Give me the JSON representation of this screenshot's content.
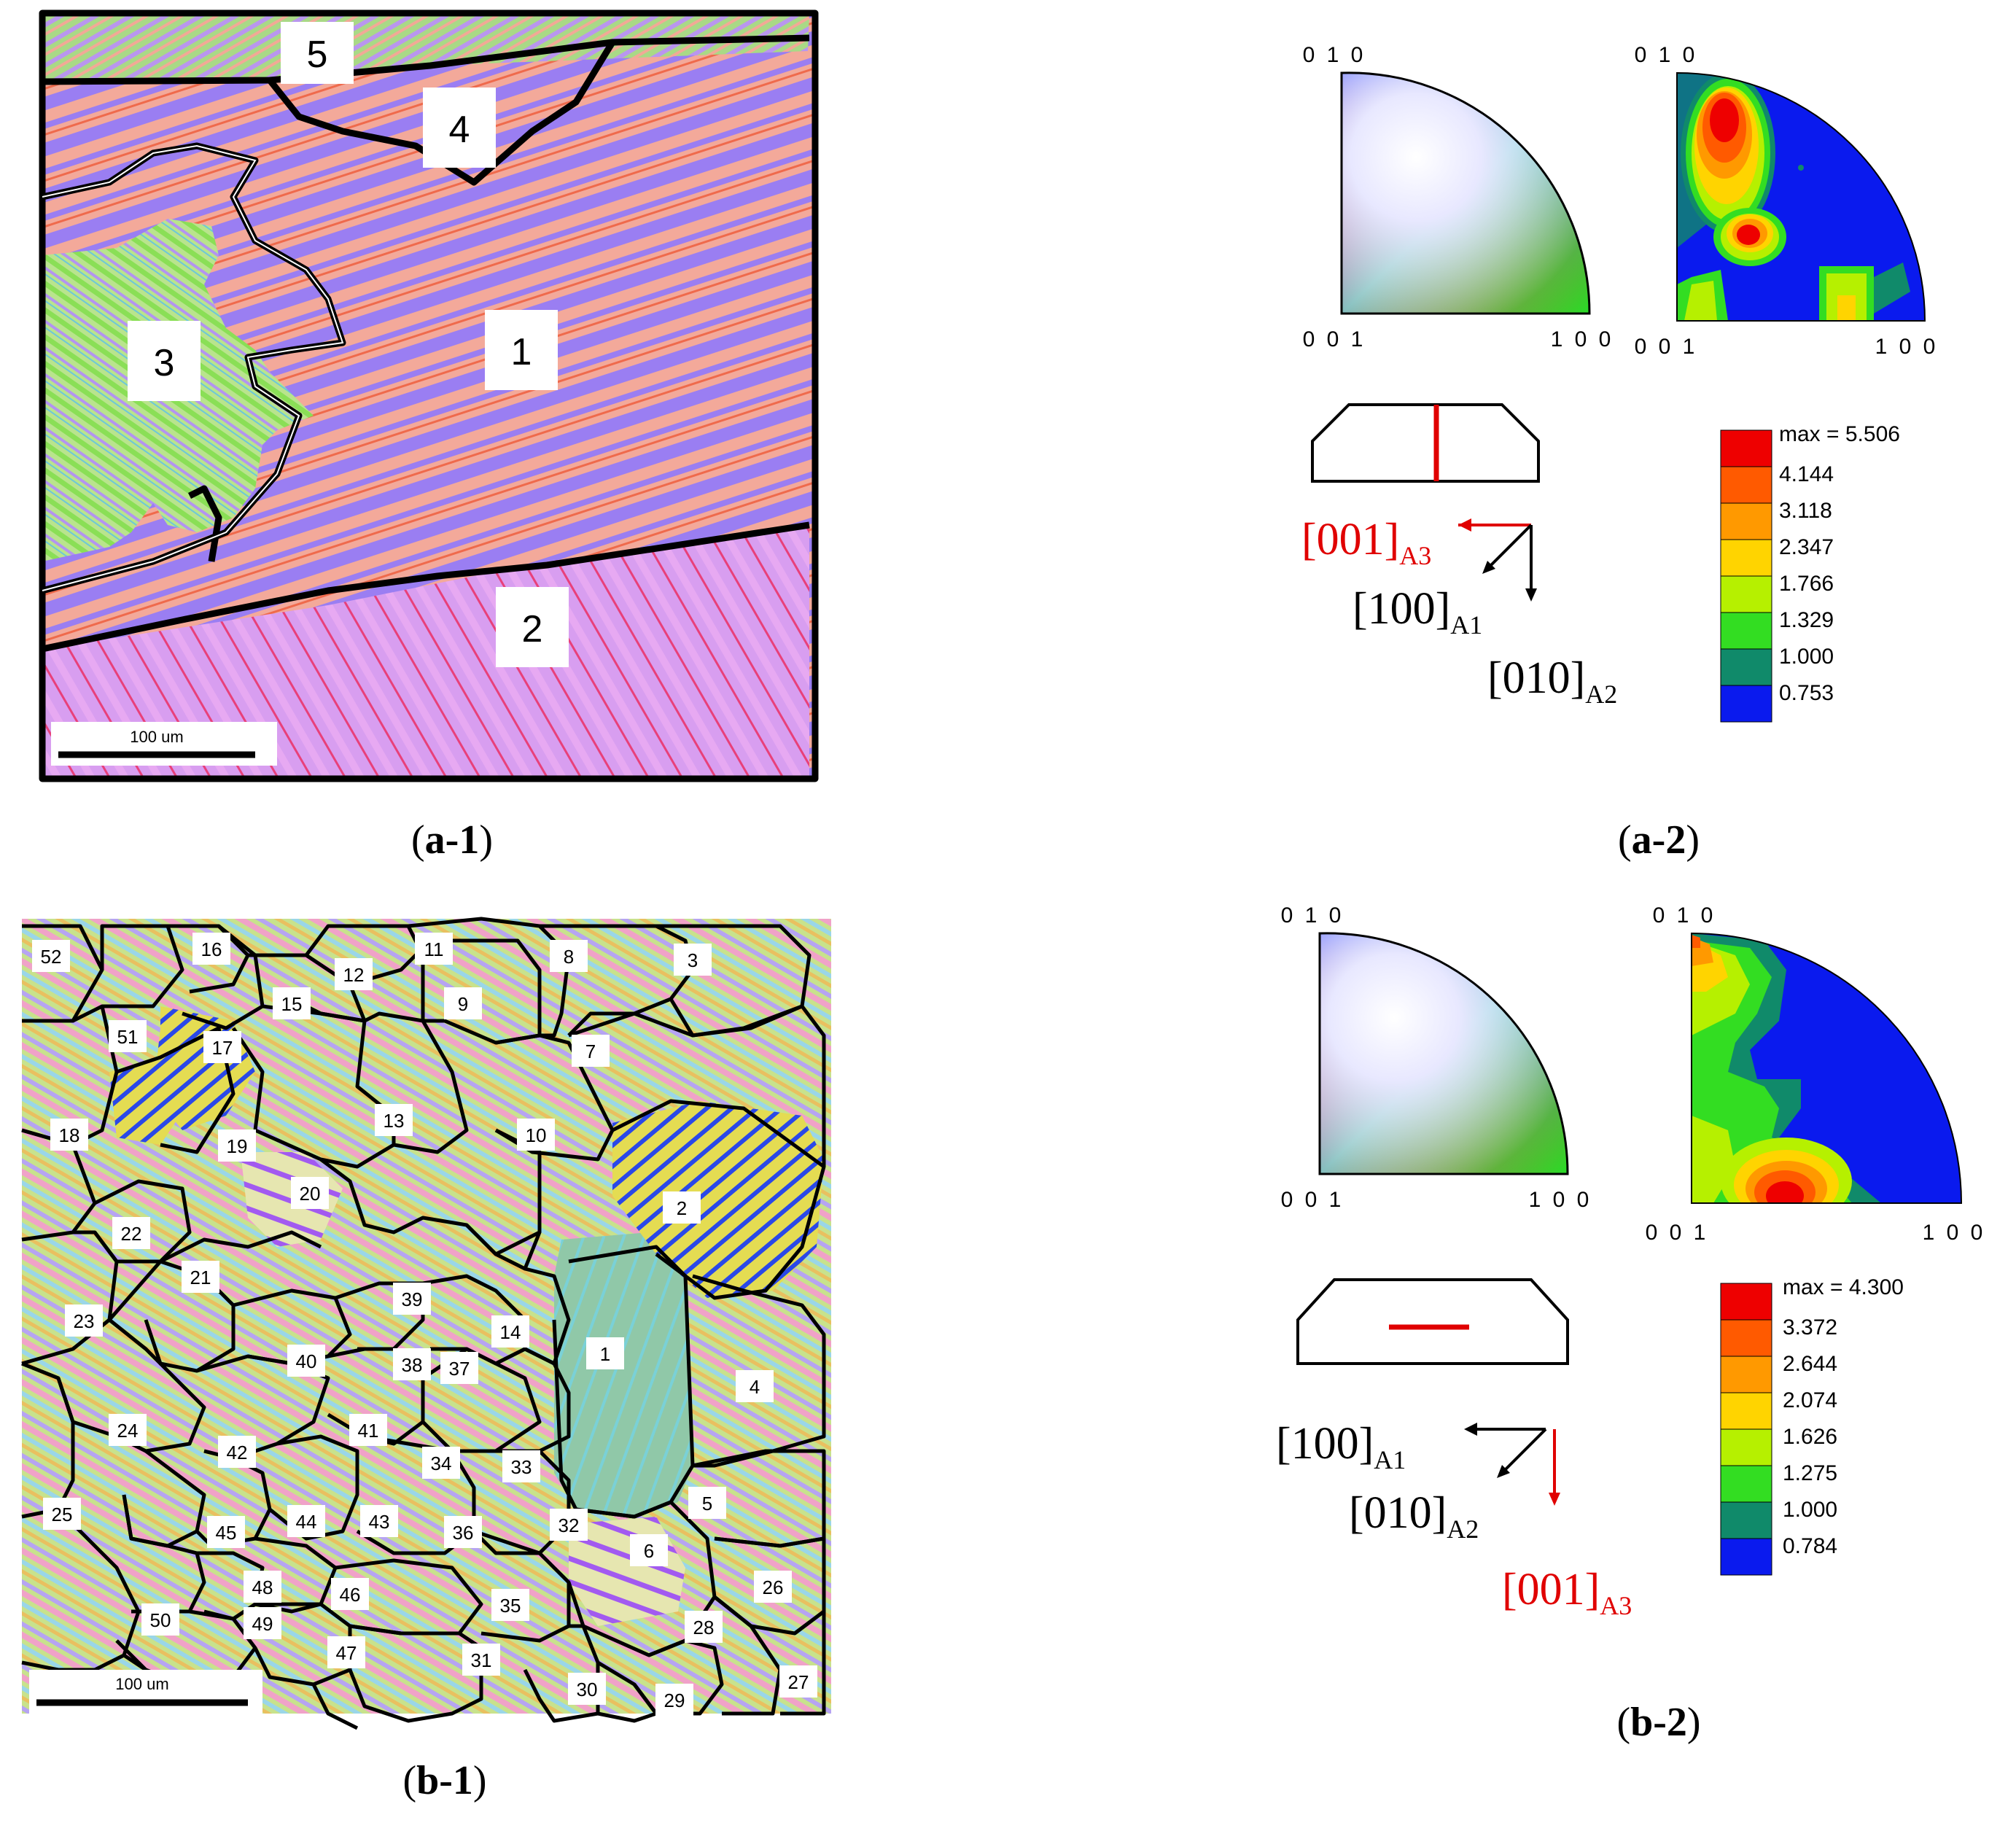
{
  "figure": {
    "panels": {
      "a1": {
        "caption_open": "(",
        "caption_label": "a-1",
        "caption_close": ")",
        "grain_labels": [
          "1",
          "2",
          "3",
          "4",
          "5"
        ],
        "scale_bar": "100 um"
      },
      "a2": {
        "caption_open": "(",
        "caption_label": "a-2",
        "caption_close": ")",
        "ipf_key": {
          "top": "0 1 0",
          "bottom_left": "0 0 1",
          "bottom_right": "1 0 0"
        },
        "pole_figure": {
          "top": "0 1 0",
          "bottom_left": "0 0 1",
          "bottom_right": "1 0 0"
        },
        "axes": {
          "red": {
            "text": "[001]",
            "sub": "A3"
          },
          "a": {
            "text": "[100]",
            "sub": "A1"
          },
          "b": {
            "text": "[010]",
            "sub": "A2"
          }
        },
        "legend_max": "max = 5.506",
        "legend_levels": [
          "4.144",
          "3.118",
          "2.347",
          "1.766",
          "1.329",
          "1.000",
          "0.753"
        ]
      },
      "b1": {
        "caption_open": "(",
        "caption_label": "b-1",
        "caption_close": ")",
        "grain_labels": [
          "52",
          "16",
          "11",
          "8",
          "3",
          "12",
          "15",
          "9",
          "51",
          "17",
          "7",
          "13",
          "18",
          "19",
          "10",
          "20",
          "2",
          "22",
          "21",
          "39",
          "23",
          "14",
          "1",
          "40",
          "38",
          "37",
          "4",
          "24",
          "41",
          "42",
          "34",
          "33",
          "5",
          "25",
          "45",
          "44",
          "43",
          "36",
          "32",
          "6",
          "48",
          "46",
          "35",
          "26",
          "50",
          "49",
          "47",
          "31",
          "28",
          "30",
          "29",
          "27"
        ],
        "scale_bar": "100 um"
      },
      "b2": {
        "caption_open": "(",
        "caption_label": "b-2",
        "caption_close": ")",
        "ipf_key": {
          "top": "0 1 0",
          "bottom_left": "0 0 1",
          "bottom_right": "1 0 0"
        },
        "pole_figure": {
          "top": "0 1 0",
          "bottom_left": "0 0 1",
          "bottom_right": "1 0 0"
        },
        "axes": {
          "a": {
            "text": "[100]",
            "sub": "A1"
          },
          "b": {
            "text": "[010]",
            "sub": "A2"
          },
          "red": {
            "text": "[001]",
            "sub": "A3"
          }
        },
        "legend_max": "max = 4.300",
        "legend_levels": [
          "3.372",
          "2.644",
          "2.074",
          "1.626",
          "1.275",
          "1.000",
          "0.784"
        ]
      }
    },
    "colors": {
      "legend_scale": [
        "#ee0000",
        "#ff5a00",
        "#ff9900",
        "#ffd400",
        "#b6f000",
        "#33dd22",
        "#108a6a",
        "#0a1aee"
      ],
      "annotation_red": "#e00000",
      "pole_background": "#0a1aee"
    }
  }
}
